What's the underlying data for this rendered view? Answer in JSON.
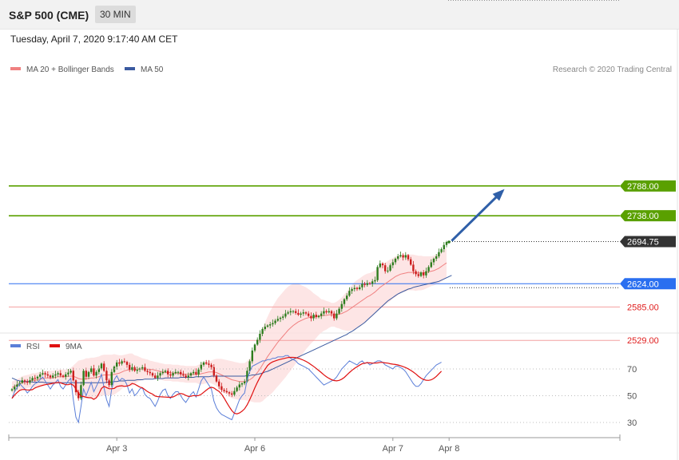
{
  "header": {
    "title": "S&P 500 (CME)",
    "timeframe": "30 MIN",
    "datetime": "Tuesday, April 7, 2020 9:17:40 AM CET"
  },
  "colors": {
    "ma20": "#f08080",
    "ma50": "#3a5aa0",
    "band_fill": "#fde0e0",
    "resistance": "#5aa000",
    "pivot": "#2a6ff0",
    "support": "#f4a0a0",
    "support_text": "#e02020",
    "current": "#333333",
    "candle_up": "#2e7d1e",
    "candle_down": "#cc1f1f",
    "arrow": "#2f5fa8",
    "rsi": "#5a7ed8",
    "rsi_ma": "#e01010"
  },
  "chart_data": [
    {
      "type": "candlestick",
      "legend": [
        {
          "label": "MA 20 + Bollinger Bands",
          "color": "#f08080"
        },
        {
          "label": "MA 50",
          "color": "#3a5aa0"
        }
      ],
      "credit": "Research © 2020 Trading Central",
      "ylim": [
        2400,
        2800
      ],
      "x_ticks": [
        {
          "index": 41,
          "label": "Apr 3"
        },
        {
          "index": 95,
          "label": "Apr 6"
        },
        {
          "index": 149,
          "label": "Apr 7"
        },
        {
          "index": 171,
          "label": "Apr 8"
        }
      ],
      "levels": [
        {
          "value": 2788.0,
          "label": "2788.00",
          "kind": "resistance"
        },
        {
          "value": 2738.0,
          "label": "2738.00",
          "kind": "resistance"
        },
        {
          "value": 2694.75,
          "label": "2694.75",
          "kind": "current"
        },
        {
          "value": 2624.0,
          "label": "2624.00",
          "kind": "pivot"
        },
        {
          "value": 2585.0,
          "label": "2585.00",
          "kind": "support"
        },
        {
          "value": 2529.0,
          "label": "2529.00",
          "kind": "support"
        }
      ],
      "arrow": {
        "from": [
          172,
          2696
        ],
        "to": [
          192,
          2780
        ]
      },
      "close": [
        2447,
        2451,
        2455,
        2458,
        2462,
        2460,
        2458,
        2462,
        2466,
        2465,
        2468,
        2472,
        2474,
        2472,
        2470,
        2467,
        2470,
        2472,
        2474,
        2470,
        2468,
        2472,
        2475,
        2478,
        2462,
        2442,
        2432,
        2454,
        2478,
        2468,
        2476,
        2482,
        2470,
        2476,
        2482,
        2490,
        2478,
        2462,
        2454,
        2476,
        2485,
        2492,
        2490,
        2494,
        2493,
        2488,
        2480,
        2484,
        2478,
        2480,
        2482,
        2484,
        2478,
        2476,
        2474,
        2470,
        2466,
        2470,
        2474,
        2476,
        2478,
        2472,
        2470,
        2474,
        2476,
        2476,
        2472,
        2470,
        2467,
        2470,
        2474,
        2476,
        2472,
        2480,
        2488,
        2492,
        2490,
        2488,
        2484,
        2470,
        2460,
        2452,
        2446,
        2444,
        2442,
        2440,
        2438,
        2444,
        2450,
        2455,
        2457,
        2460,
        2478,
        2494,
        2512,
        2522,
        2530,
        2540,
        2548,
        2552,
        2554,
        2556,
        2558,
        2562,
        2565,
        2567,
        2569,
        2574,
        2576,
        2578,
        2578,
        2575,
        2572,
        2574,
        2576,
        2574,
        2570,
        2566,
        2572,
        2568,
        2570,
        2574,
        2578,
        2576,
        2578,
        2574,
        2566,
        2574,
        2582,
        2590,
        2598,
        2604,
        2612,
        2615,
        2617,
        2615,
        2618,
        2624,
        2622,
        2625,
        2624,
        2628,
        2630,
        2652,
        2658,
        2655,
        2645,
        2646,
        2655,
        2660,
        2666,
        2670,
        2672,
        2668,
        2672,
        2665,
        2656,
        2645,
        2640,
        2637,
        2643,
        2638,
        2645,
        2652,
        2660,
        2666,
        2670,
        2677,
        2682,
        2689,
        2694
      ],
      "ma20": [
        2450,
        2452,
        2454,
        2456,
        2458,
        2459,
        2460,
        2461,
        2462,
        2462,
        2463,
        2464,
        2465,
        2466,
        2466,
        2466,
        2466,
        2467,
        2468,
        2468,
        2468,
        2468,
        2469,
        2469,
        2469,
        2467,
        2465,
        2464,
        2464,
        2465,
        2465,
        2466,
        2466,
        2467,
        2468,
        2470,
        2471,
        2471,
        2471,
        2471,
        2472,
        2473,
        2474,
        2476,
        2478,
        2479,
        2480,
        2480,
        2480,
        2481,
        2481,
        2481,
        2481,
        2481,
        2480,
        2480,
        2479,
        2478,
        2477,
        2476,
        2475,
        2475,
        2475,
        2474,
        2474,
        2474,
        2473,
        2473,
        2472,
        2472,
        2472,
        2472,
        2472,
        2472,
        2473,
        2474,
        2475,
        2476,
        2476,
        2476,
        2475,
        2473,
        2471,
        2469,
        2467,
        2465,
        2463,
        2462,
        2461,
        2460,
        2460,
        2460,
        2461,
        2463,
        2466,
        2470,
        2475,
        2481,
        2488,
        2495,
        2502,
        2508,
        2514,
        2520,
        2526,
        2531,
        2536,
        2541,
        2546,
        2550,
        2554,
        2557,
        2560,
        2562,
        2564,
        2566,
        2567,
        2568,
        2568,
        2569,
        2570,
        2570,
        2571,
        2571,
        2572,
        2572,
        2572,
        2572,
        2573,
        2574,
        2576,
        2578,
        2581,
        2584,
        2587,
        2590,
        2593,
        2596,
        2599,
        2602,
        2604,
        2607,
        2610,
        2614,
        2618,
        2621,
        2624,
        2627,
        2630,
        2633,
        2636,
        2638,
        2640,
        2641,
        2642,
        2643,
        2643,
        2643,
        2642,
        2642,
        2642,
        2642,
        2643,
        2644,
        2645,
        2646,
        2648,
        2650,
        2653,
        2656,
        2659
      ],
      "bb_width": [
        10,
        10,
        10,
        10,
        11,
        11,
        11,
        11,
        12,
        12,
        12,
        12,
        12,
        12,
        12,
        12,
        12,
        12,
        12,
        12,
        12,
        12,
        12,
        14,
        18,
        24,
        30,
        32,
        33,
        34,
        34,
        34,
        34,
        34,
        34,
        34,
        34,
        34,
        34,
        34,
        34,
        32,
        30,
        28,
        27,
        27,
        27,
        27,
        24,
        22,
        20,
        18,
        17,
        16,
        15,
        14,
        14,
        14,
        14,
        14,
        14,
        14,
        14,
        14,
        14,
        14,
        14,
        14,
        14,
        14,
        14,
        14,
        14,
        16,
        18,
        18,
        18,
        18,
        19,
        21,
        23,
        25,
        27,
        28,
        29,
        30,
        31,
        31,
        31,
        31,
        31,
        31,
        33,
        36,
        40,
        45,
        50,
        56,
        61,
        64,
        67,
        70,
        72,
        73,
        74,
        74,
        74,
        74,
        73,
        72,
        70,
        67,
        64,
        60,
        56,
        52,
        48,
        44,
        40,
        36,
        32,
        28,
        26,
        24,
        22,
        20,
        20,
        22,
        24,
        27,
        30,
        33,
        36,
        38,
        40,
        40,
        40,
        40,
        40,
        39,
        38,
        37,
        36,
        36,
        36,
        36,
        35,
        35,
        35,
        34,
        34,
        33,
        32,
        31,
        31,
        30,
        30,
        30,
        30,
        29,
        29,
        28,
        27,
        26,
        25,
        25,
        25,
        25,
        25,
        25,
        25,
        25,
        25
      ],
      "ma50": [
        2466,
        2464,
        2462,
        2461,
        2460,
        2460,
        2460,
        2460,
        2459,
        2459,
        2459,
        2459,
        2459,
        2458,
        2458,
        2458,
        2458,
        2458,
        2458,
        2458,
        2458,
        2458,
        2458,
        2458,
        2458,
        2458,
        2458,
        2458,
        2458,
        2458,
        2458,
        2458,
        2458,
        2458,
        2458,
        2458,
        2458,
        2459,
        2459,
        2459,
        2460,
        2460,
        2461,
        2461,
        2461,
        2462,
        2462,
        2462,
        2462,
        2463,
        2463,
        2463,
        2464,
        2464,
        2464,
        2464,
        2465,
        2465,
        2465,
        2465,
        2466,
        2466,
        2466,
        2466,
        2466,
        2466,
        2467,
        2467,
        2467,
        2467,
        2467,
        2467,
        2468,
        2468,
        2468,
        2468,
        2468,
        2468,
        2469,
        2469,
        2469,
        2469,
        2469,
        2469,
        2469,
        2469,
        2469,
        2469,
        2469,
        2469,
        2469,
        2469,
        2470,
        2470,
        2471,
        2471,
        2472,
        2473,
        2474,
        2476,
        2477,
        2479,
        2481,
        2483,
        2485,
        2487,
        2489,
        2491,
        2493,
        2495,
        2497,
        2499,
        2501,
        2503,
        2505,
        2507,
        2509,
        2511,
        2513,
        2515,
        2517,
        2519,
        2521,
        2523,
        2525,
        2527,
        2529,
        2531,
        2533,
        2535,
        2537,
        2539,
        2542,
        2544,
        2547,
        2550,
        2553,
        2556,
        2559,
        2563,
        2567,
        2571,
        2575,
        2579,
        2583,
        2587,
        2591,
        2595,
        2598,
        2601,
        2604,
        2607,
        2609,
        2611,
        2613,
        2615,
        2616,
        2618,
        2619,
        2620,
        2621,
        2622,
        2623,
        2624,
        2625,
        2626,
        2627,
        2628,
        2630,
        2632,
        2634,
        2636,
        2638
      ]
    },
    {
      "type": "line",
      "legend": [
        {
          "label": "RSI",
          "color": "#5a7ed8"
        },
        {
          "label": "9MA",
          "color": "#e01010"
        }
      ],
      "ylim": [
        20,
        85
      ],
      "y_ticks": [
        30,
        50,
        70
      ],
      "rsi": [
        48,
        53,
        56,
        59,
        57,
        55,
        52,
        54,
        57,
        59,
        60,
        62,
        64,
        61,
        58,
        55,
        58,
        60,
        62,
        57,
        55,
        58,
        61,
        63,
        47,
        34,
        30,
        42,
        55,
        50,
        55,
        60,
        53,
        57,
        61,
        66,
        56,
        47,
        42,
        55,
        62,
        65,
        61,
        63,
        62,
        58,
        52,
        55,
        50,
        52,
        55,
        56,
        51,
        49,
        48,
        45,
        42,
        46,
        51,
        54,
        55,
        50,
        48,
        51,
        53,
        53,
        50,
        47,
        45,
        48,
        51,
        53,
        49,
        55,
        61,
        64,
        61,
        58,
        55,
        46,
        41,
        38,
        36,
        35,
        34,
        33,
        32,
        37,
        42,
        47,
        50,
        52,
        62,
        68,
        72,
        73,
        74,
        75,
        76,
        76,
        77,
        77,
        78,
        78,
        79,
        79,
        79,
        80,
        80,
        78,
        77,
        76,
        74,
        73,
        72,
        71,
        70,
        68,
        66,
        64,
        62,
        60,
        58,
        59,
        60,
        61,
        62,
        64,
        67,
        70,
        72,
        74,
        76,
        75,
        74,
        73,
        75,
        76,
        74,
        75,
        73,
        74,
        75,
        76,
        76,
        75,
        73,
        72,
        71,
        70,
        72,
        72,
        71,
        70,
        68,
        65,
        62,
        59,
        57,
        57,
        59,
        62,
        65,
        67,
        69,
        71,
        73,
        74,
        75
      ]
    }
  ]
}
